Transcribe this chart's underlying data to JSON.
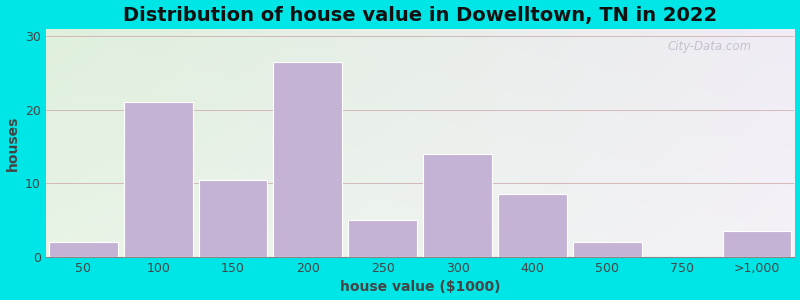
{
  "title": "Distribution of house value in Dowelltown, TN in 2022",
  "xlabel": "house value ($1000)",
  "ylabel": "houses",
  "xtick_labels": [
    "50",
    "100",
    "150",
    "200",
    "250",
    "300",
    "400",
    "500",
    "750",
    ">1,000"
  ],
  "bar_values": [
    2,
    21,
    10.5,
    26.5,
    5,
    14,
    8.5,
    2,
    0,
    3.5
  ],
  "bar_color": "#c5b3d5",
  "bar_edgecolor": "#ffffff",
  "yticks": [
    0,
    10,
    20,
    30
  ],
  "ylim": [
    0,
    31
  ],
  "background_outer": "#00e5e5",
  "bg_left_color": "#dff0dc",
  "bg_right_color": "#f0ecf5",
  "grid_color": "#d0b0b0",
  "watermark": "City-Data.com",
  "title_fontsize": 14,
  "axis_label_fontsize": 10,
  "tick_fontsize": 9,
  "n_bars": 10
}
